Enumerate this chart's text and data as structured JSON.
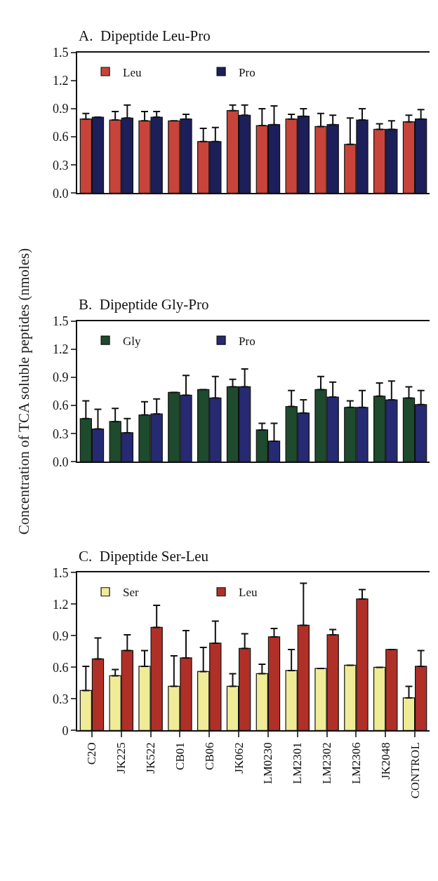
{
  "chart_data": [
    {
      "type": "bar",
      "title": "A.  Dipeptide Leu-Pro",
      "categories": [
        null,
        null,
        null,
        null,
        null,
        null,
        null,
        null,
        null,
        null,
        null,
        null
      ],
      "tick_labels": "y",
      "legend": "top left",
      "ylim": [
        0,
        1.5
      ],
      "yticks": [
        {
          "value": 0,
          "label": "0.0"
        },
        0.3,
        0.6,
        0.9,
        1.2,
        1.5
      ],
      "series": [
        {
          "name": "Leu",
          "color": "#c8443a",
          "values": [
            0.79,
            0.78,
            0.77,
            0.77,
            0.55,
            0.88,
            0.72,
            0.79,
            0.71,
            0.52,
            0.68,
            0.76
          ],
          "errors": [
            [
              0.79,
              0.85
            ],
            [
              0.78,
              0.87
            ],
            [
              0.77,
              0.87
            ],
            null,
            [
              0.55,
              0.69
            ],
            [
              0.88,
              0.94
            ],
            [
              0.72,
              0.9
            ],
            [
              0.79,
              0.84
            ],
            [
              0.71,
              0.85
            ],
            [
              0.52,
              0.8
            ],
            [
              0.68,
              0.74
            ],
            [
              0.76,
              0.83
            ]
          ]
        },
        {
          "name": "Pro",
          "color": "#1c1f5a",
          "values": [
            0.81,
            0.8,
            0.81,
            0.79,
            0.55,
            0.83,
            0.73,
            0.82,
            0.73,
            0.78,
            0.68,
            0.79
          ],
          "errors": [
            null,
            [
              0.8,
              0.94
            ],
            [
              0.81,
              0.87
            ],
            [
              0.79,
              0.84
            ],
            [
              0.55,
              0.7
            ],
            [
              0.83,
              0.94
            ],
            [
              0.73,
              0.93
            ],
            [
              0.82,
              0.9
            ],
            [
              0.73,
              0.83
            ],
            [
              0.78,
              0.9
            ],
            [
              0.68,
              0.77
            ],
            [
              0.79,
              0.89
            ]
          ]
        }
      ]
    },
    {
      "type": "bar",
      "title": "B.  Dipeptide Gly-Pro",
      "ylabel": "Concentration of TCA soluble peptides (nmoles)",
      "categories": [
        null,
        null,
        null,
        null,
        null,
        null,
        null,
        null,
        null,
        null,
        null,
        null
      ],
      "tick_labels": "y",
      "legend": "top left",
      "ylim": [
        0,
        1.5
      ],
      "yticks": [
        {
          "value": 0,
          "label": "0.0"
        },
        0.3,
        0.6,
        0.9,
        1.2,
        1.5
      ],
      "series": [
        {
          "name": "Gly",
          "color": "#1e4a2e",
          "values": [
            0.46,
            0.43,
            0.5,
            0.74,
            0.77,
            0.8,
            0.34,
            0.59,
            0.77,
            0.58,
            0.7,
            0.68
          ],
          "errors": [
            [
              0.46,
              0.65
            ],
            [
              0.43,
              0.57
            ],
            [
              0.5,
              0.64
            ],
            null,
            null,
            [
              0.8,
              0.88
            ],
            [
              0.34,
              0.41
            ],
            [
              0.59,
              0.76
            ],
            [
              0.77,
              0.91
            ],
            [
              0.58,
              0.65
            ],
            [
              0.7,
              0.84
            ],
            [
              0.68,
              0.8
            ]
          ]
        },
        {
          "name": "Pro",
          "color": "#262a72",
          "values": [
            0.35,
            0.31,
            0.51,
            0.71,
            0.68,
            0.8,
            0.22,
            0.52,
            0.69,
            0.58,
            0.66,
            0.61
          ],
          "errors": [
            [
              0.35,
              0.56
            ],
            [
              0.31,
              0.46
            ],
            [
              0.51,
              0.67
            ],
            [
              0.71,
              0.92
            ],
            [
              0.68,
              0.91
            ],
            [
              0.8,
              0.99
            ],
            [
              0.22,
              0.41
            ],
            [
              0.52,
              0.66
            ],
            [
              0.69,
              0.85
            ],
            [
              0.58,
              0.76
            ],
            [
              0.66,
              0.86
            ],
            [
              0.61,
              0.76
            ]
          ]
        }
      ]
    },
    {
      "type": "bar",
      "title": "C.  Dipeptide Ser-Leu",
      "categories": [
        "C2O",
        "JK225",
        "JK522",
        "CB01",
        "CB06",
        "JK062",
        "LM0230",
        "LM2301",
        "LM2302",
        "LM2306",
        "JK2048",
        "CONTROL"
      ],
      "legend": "top left",
      "ylim": [
        0,
        1.5
      ],
      "yticks": [
        0,
        0.3,
        0.6,
        0.9,
        1.2,
        1.5
      ],
      "series": [
        {
          "name": "Ser",
          "color": "#f0eb96",
          "values": [
            0.38,
            0.52,
            0.61,
            0.42,
            0.56,
            0.42,
            0.54,
            0.57,
            0.59,
            0.62,
            0.6,
            0.31
          ],
          "errors": [
            [
              0.38,
              0.61
            ],
            [
              0.52,
              0.58
            ],
            [
              0.61,
              0.76
            ],
            [
              0.42,
              0.71
            ],
            [
              0.56,
              0.79
            ],
            [
              0.42,
              0.54
            ],
            [
              0.54,
              0.63
            ],
            [
              0.57,
              0.77
            ],
            null,
            null,
            null,
            [
              0.31,
              0.42
            ]
          ]
        },
        {
          "name": "Leu",
          "color": "#b03028",
          "values": [
            0.68,
            0.76,
            0.98,
            0.69,
            0.83,
            0.78,
            0.89,
            1.0,
            0.91,
            1.25,
            0.77,
            0.61
          ],
          "errors": [
            [
              0.68,
              0.88
            ],
            [
              0.76,
              0.91
            ],
            [
              0.98,
              1.19
            ],
            [
              0.69,
              0.95
            ],
            [
              0.83,
              1.04
            ],
            [
              0.78,
              0.92
            ],
            [
              0.89,
              0.97
            ],
            [
              1.0,
              1.4
            ],
            [
              0.91,
              0.96
            ],
            [
              1.25,
              1.34
            ],
            null,
            [
              0.61,
              0.76
            ]
          ]
        }
      ]
    }
  ]
}
